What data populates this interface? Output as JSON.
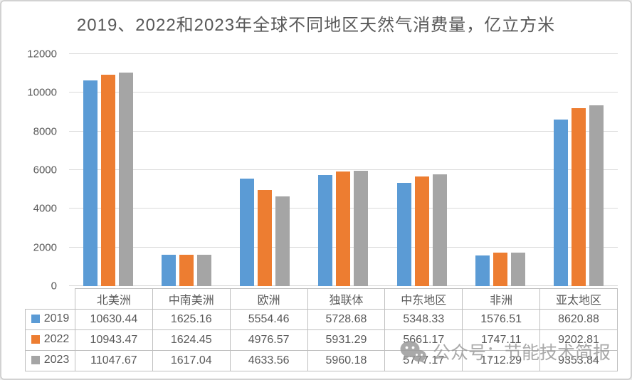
{
  "watermark": {
    "icon": "wechat-icon",
    "text": "公众号：节能技术简报"
  },
  "chart_data": {
    "type": "bar",
    "title": "2019、2022和2023年全球不同地区天然气消费量，亿立方米",
    "categories": [
      "北美洲",
      "中南美洲",
      "欧洲",
      "独联体",
      "中东地区",
      "非洲",
      "亚太地区"
    ],
    "series": [
      {
        "name": "2019",
        "color": "#5b9bd5",
        "values": [
          10630.44,
          1625.16,
          5554.46,
          5728.68,
          5348.33,
          1576.51,
          8620.88
        ]
      },
      {
        "name": "2022",
        "color": "#ed7d31",
        "values": [
          10943.47,
          1624.45,
          4976.57,
          5931.29,
          5661.17,
          1747.11,
          9202.81
        ]
      },
      {
        "name": "2023",
        "color": "#a5a5a5",
        "values": [
          11047.67,
          1617.04,
          4633.56,
          5960.18,
          5777.17,
          1712.29,
          9353.84
        ]
      }
    ],
    "xlabel": "",
    "ylabel": "",
    "ylim": [
      0,
      12000
    ],
    "yticks": [
      0,
      2000,
      4000,
      6000,
      8000,
      10000,
      12000
    ],
    "grid": true,
    "legend_position": "data-table-left",
    "value_decimals": 2,
    "colors": {
      "title_text": "#595959",
      "axis_text": "#595959",
      "table_text": "#595959",
      "gridline": "#d9d9d9",
      "table_border": "#bfbfbf",
      "background": "#ffffff"
    }
  }
}
